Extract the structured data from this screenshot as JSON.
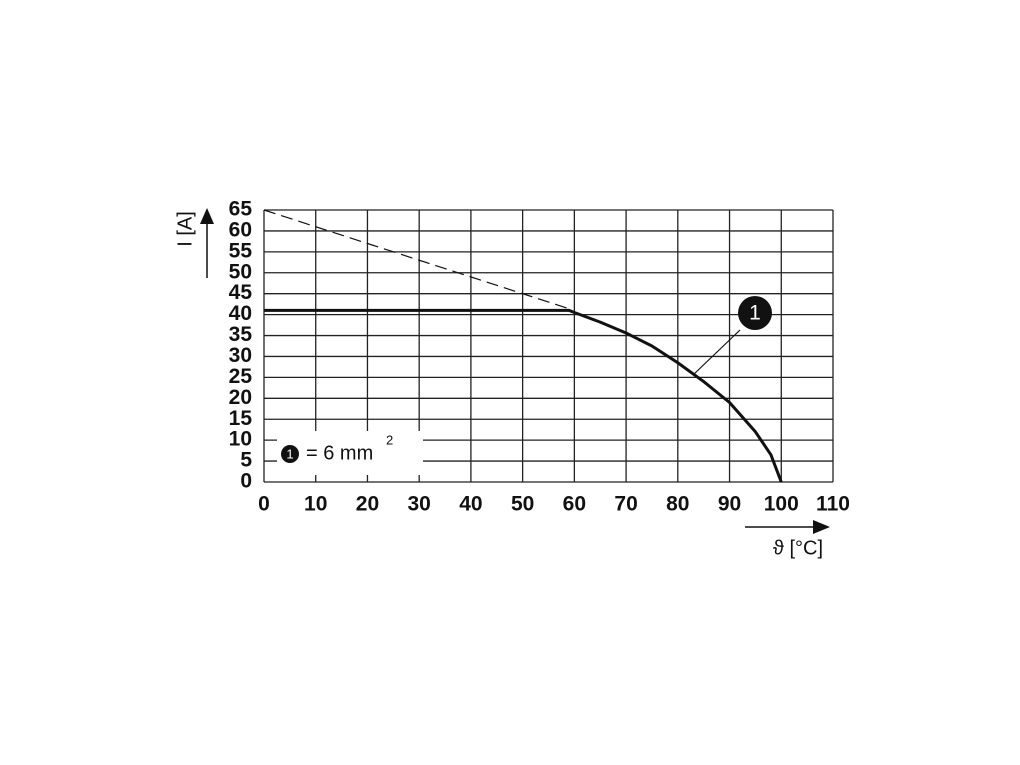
{
  "chart_data": {
    "type": "line",
    "xlabel": "ϑ [°C]",
    "ylabel": "I [A]",
    "xlim": [
      0,
      110
    ],
    "xticks": [
      0,
      10,
      20,
      30,
      40,
      50,
      60,
      70,
      80,
      90,
      100,
      110
    ],
    "ylim": [
      0,
      65
    ],
    "yticks": [
      0,
      5,
      10,
      15,
      20,
      25,
      30,
      35,
      40,
      45,
      50,
      55,
      60,
      65
    ],
    "grid": true,
    "series": [
      {
        "color": "#111111",
        "dash": false,
        "x": [
          0,
          59,
          60,
          65,
          70,
          75,
          80,
          85,
          90,
          95,
          98,
          100
        ],
        "values": [
          41,
          41,
          40.5,
          38.2,
          35.6,
          32.5,
          28.5,
          24,
          19,
          12,
          6.5,
          0
        ]
      },
      {
        "color": "#111111",
        "dash": true,
        "x": [
          0,
          59
        ],
        "values": [
          65,
          41.4
        ]
      }
    ],
    "annotation": "1",
    "legend": {
      "marker": "1",
      "text": "= 6 mm",
      "superscript": "2"
    }
  }
}
